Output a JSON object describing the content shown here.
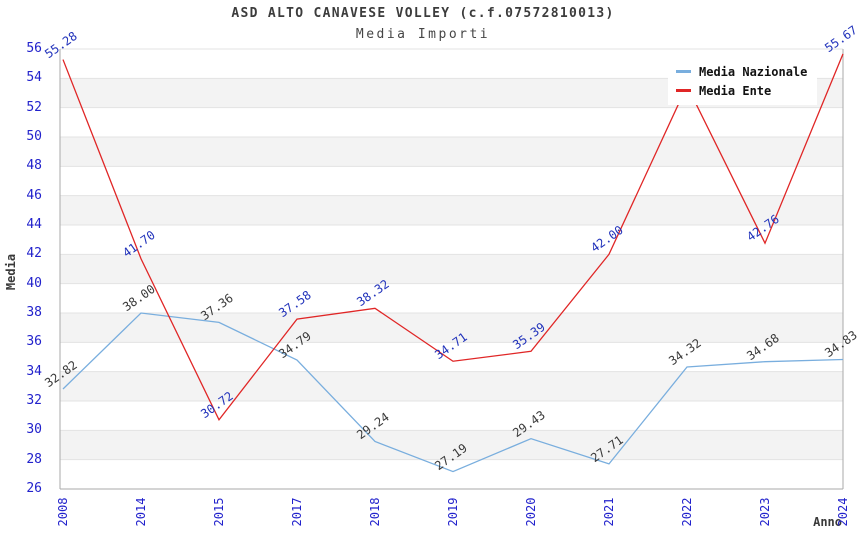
{
  "chart_data": {
    "type": "line",
    "title": "ASD ALTO CANAVESE VOLLEY (c.f.07572810013)",
    "subtitle": "Media Importi",
    "xlabel": "Anno",
    "ylabel": "Media",
    "ylim": [
      26,
      56
    ],
    "yticks": [
      56,
      54,
      52,
      50,
      48,
      46,
      44,
      42,
      40,
      38,
      36,
      34,
      32,
      30,
      28,
      26
    ],
    "categories": [
      "2008",
      "2014",
      "2015",
      "2017",
      "2018",
      "2019",
      "2020",
      "2021",
      "2022",
      "2023",
      "2024"
    ],
    "series": [
      {
        "name": "Media Nazionale",
        "color": "#79aede",
        "label_color": "#3a3a3a",
        "values": [
          32.82,
          38.0,
          37.36,
          34.79,
          29.24,
          27.19,
          29.43,
          27.71,
          34.32,
          34.68,
          34.83
        ],
        "point_labels": [
          "32.82",
          "38.00",
          "37.36",
          "34.79",
          "29.24",
          "27.19",
          "29.43",
          "27.71",
          "34.32",
          "34.68",
          "34.83"
        ]
      },
      {
        "name": "Media Ente",
        "color": "#e02626",
        "label_color": "#2233bb",
        "values": [
          55.28,
          41.7,
          30.72,
          37.58,
          38.32,
          34.71,
          35.39,
          42.0,
          53.5,
          42.76,
          55.67
        ],
        "point_labels": [
          "55.28",
          "41.70",
          "30.72",
          "37.58",
          "38.32",
          "34.71",
          "35.39",
          "42.00",
          null,
          "42.76",
          "55.67"
        ]
      }
    ],
    "legend": {
      "position": "top-right",
      "entries": [
        "Media Nazionale",
        "Media Ente"
      ]
    },
    "grid": {
      "horizontal": true,
      "bands": true,
      "vertical": false
    },
    "colors": {
      "tick_label": "#2222cc",
      "title": "#3c3c3c",
      "band": "#f3f3f3",
      "gridline": "#e3e3e3",
      "axis_border": "#aaaaaa",
      "background": "#ffffff",
      "legend_text": "#111111"
    }
  }
}
